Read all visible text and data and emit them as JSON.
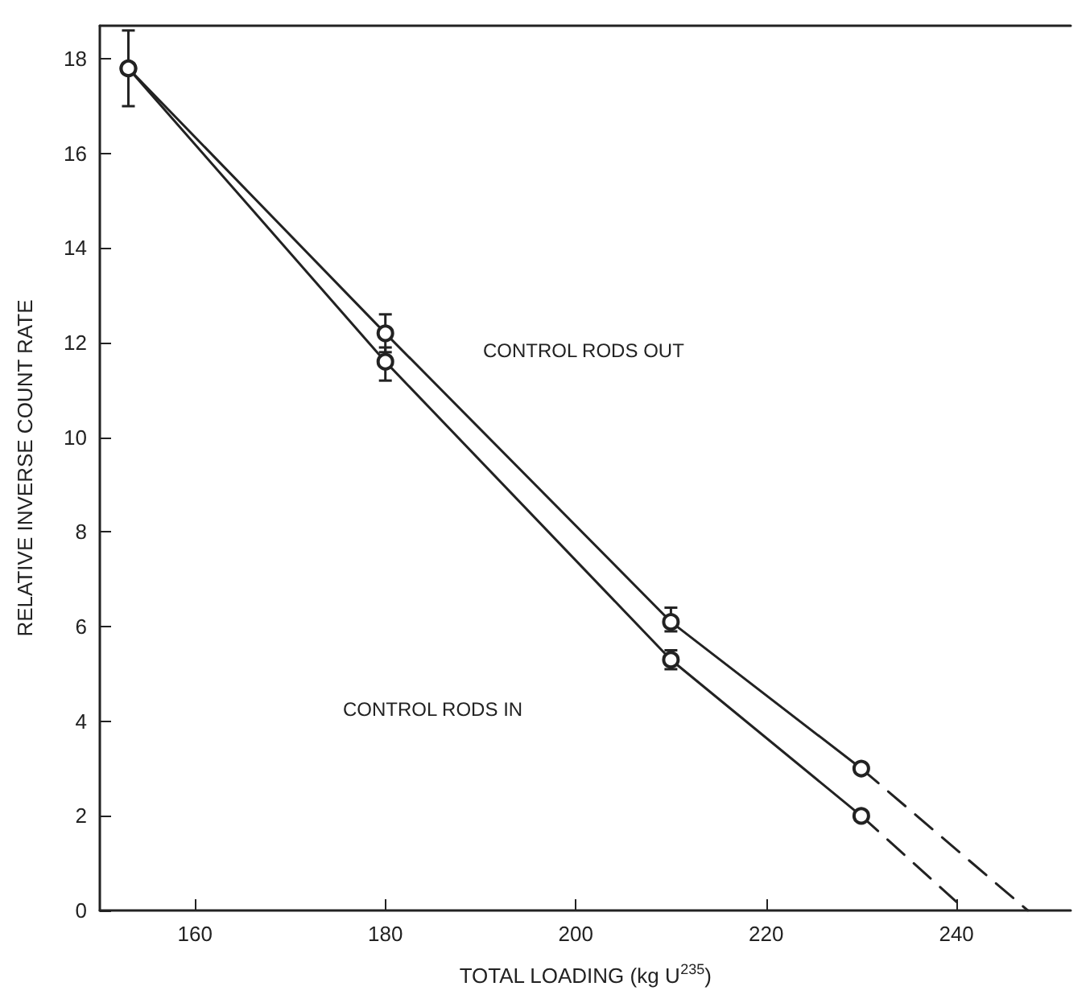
{
  "chart_data": {
    "type": "line",
    "xlabel": "TOTAL LOADING (kg U$^{235}$)",
    "ylabel": "RELATIVE INVERSE COUNT RATE",
    "xlim": [
      150,
      252
    ],
    "ylim": [
      0,
      18.7
    ],
    "xticks": [
      160,
      180,
      200,
      220,
      240
    ],
    "yticks": [
      0,
      2,
      4,
      6,
      8,
      10,
      12,
      14,
      16,
      18
    ],
    "grid": false,
    "marker": "circle",
    "line_style": "solid",
    "series": [
      {
        "color": "#222222",
        "x": [
          153,
          180,
          210,
          230
        ],
        "values": [
          17.8,
          12.2,
          6.1,
          3.0
        ],
        "errors": [
          [
            17.0,
            18.6
          ],
          [
            11.8,
            12.6
          ],
          [
            5.9,
            6.4
          ],
          null
        ]
      },
      {
        "color": "#222222",
        "x": [
          153,
          180,
          210,
          230
        ],
        "values": [
          17.8,
          11.6,
          5.3,
          2.0
        ],
        "errors": [
          null,
          [
            11.2,
            11.9
          ],
          [
            5.1,
            5.5
          ],
          null
        ]
      },
      {
        "color": "#222222",
        "x": [
          230,
          247.5
        ],
        "values": [
          3.0,
          0
        ],
        "line_style": "dashed",
        "marker": "none"
      },
      {
        "color": "#222222",
        "x": [
          230,
          241
        ],
        "values": [
          2.0,
          0
        ],
        "line_style": "dashed",
        "marker": "none"
      }
    ],
    "annotations": [
      "CONTROL RODS OUT",
      "CONTROL RODS IN"
    ]
  }
}
